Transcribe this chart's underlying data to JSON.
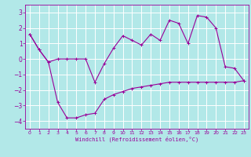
{
  "title": "",
  "xlabel": "Windchill (Refroidissement éolien,°C)",
  "background_color": "#b2e8e8",
  "grid_color": "#ffffff",
  "line_color": "#990099",
  "xlim": [
    -0.5,
    23.5
  ],
  "ylim": [
    -4.5,
    3.5
  ],
  "yticks": [
    -4,
    -3,
    -2,
    -1,
    0,
    1,
    2,
    3
  ],
  "xticks": [
    0,
    1,
    2,
    3,
    4,
    5,
    6,
    7,
    8,
    9,
    10,
    11,
    12,
    13,
    14,
    15,
    16,
    17,
    18,
    19,
    20,
    21,
    22,
    23
  ],
  "series": [
    [
      1.6,
      0.6,
      -0.2,
      0.0,
      0.0,
      0.0,
      0.0,
      -1.5,
      -0.3,
      0.7,
      1.5,
      1.2,
      0.9,
      1.6,
      1.2,
      2.5,
      2.3,
      1.0,
      2.8,
      2.7,
      2.0,
      -0.5,
      -0.6,
      -1.4
    ],
    [
      1.6,
      0.6,
      -0.2,
      -2.8,
      -3.8,
      -3.8,
      -3.6,
      -3.5,
      -2.6,
      -2.3,
      -2.1,
      -1.9,
      -1.8,
      -1.7,
      -1.6,
      -1.5,
      -1.5,
      -1.5,
      -1.5,
      -1.5,
      -1.5,
      -1.5,
      -1.5,
      -1.4
    ]
  ]
}
